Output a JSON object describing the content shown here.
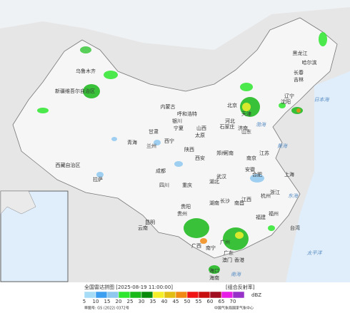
{
  "map": {
    "labels": [
      "黑龙江",
      "哈尔滨",
      "吉林",
      "长春",
      "辽宁",
      "沈阳",
      "内蒙古",
      "呼和浩特",
      "北京",
      "天津",
      "河北",
      "石家庄",
      "山西",
      "太原",
      "山东",
      "济南",
      "新疆维吾尔自治区",
      "乌鲁木齐",
      "西藏自治区",
      "拉萨",
      "青海",
      "西宁",
      "甘肃",
      "兰州",
      "宁夏",
      "银川",
      "陕西",
      "西安",
      "四川",
      "成都",
      "重庆",
      "湖北",
      "武汉",
      "河南",
      "郑州",
      "江苏",
      "南京",
      "上海",
      "安徽",
      "合肥",
      "浙江",
      "杭州",
      "湖南",
      "长沙",
      "江西",
      "南昌",
      "福建",
      "福州",
      "台湾",
      "广东",
      "广州",
      "广西",
      "南宁",
      "云南",
      "昆明",
      "贵州",
      "贵阳",
      "海南",
      "海口",
      "香港",
      "澳门",
      "渤海",
      "黄海",
      "东海",
      "南海",
      "太平洋",
      "日本海"
    ]
  },
  "legend": {
    "title": "全国雷达拼图 [2025-08-19 11:00:00]",
    "product": "[组合反射率]",
    "unit": "dBZ",
    "levels": [
      {
        "value": 5,
        "color": "#a6dcf5"
      },
      {
        "value": 10,
        "color": "#3d9ff0"
      },
      {
        "value": 15,
        "color": "#8ec8ee"
      },
      {
        "value": 20,
        "color": "#2ee62e"
      },
      {
        "value": 25,
        "color": "#18b918"
      },
      {
        "value": 30,
        "color": "#0a8a0a"
      },
      {
        "value": 35,
        "color": "#f5ef2a"
      },
      {
        "value": 40,
        "color": "#e2be14"
      },
      {
        "value": 45,
        "color": "#f08a14"
      },
      {
        "value": 50,
        "color": "#f01414"
      },
      {
        "value": 55,
        "color": "#c80f0f"
      },
      {
        "value": 60,
        "color": "#a00c20"
      },
      {
        "value": 65,
        "color": "#e61ee6"
      },
      {
        "value": 70,
        "color": "#9632c8"
      }
    ]
  },
  "footer": {
    "approval": "审图号: GS (2022) 0372号",
    "source": "中国气象局国家气象中心"
  }
}
